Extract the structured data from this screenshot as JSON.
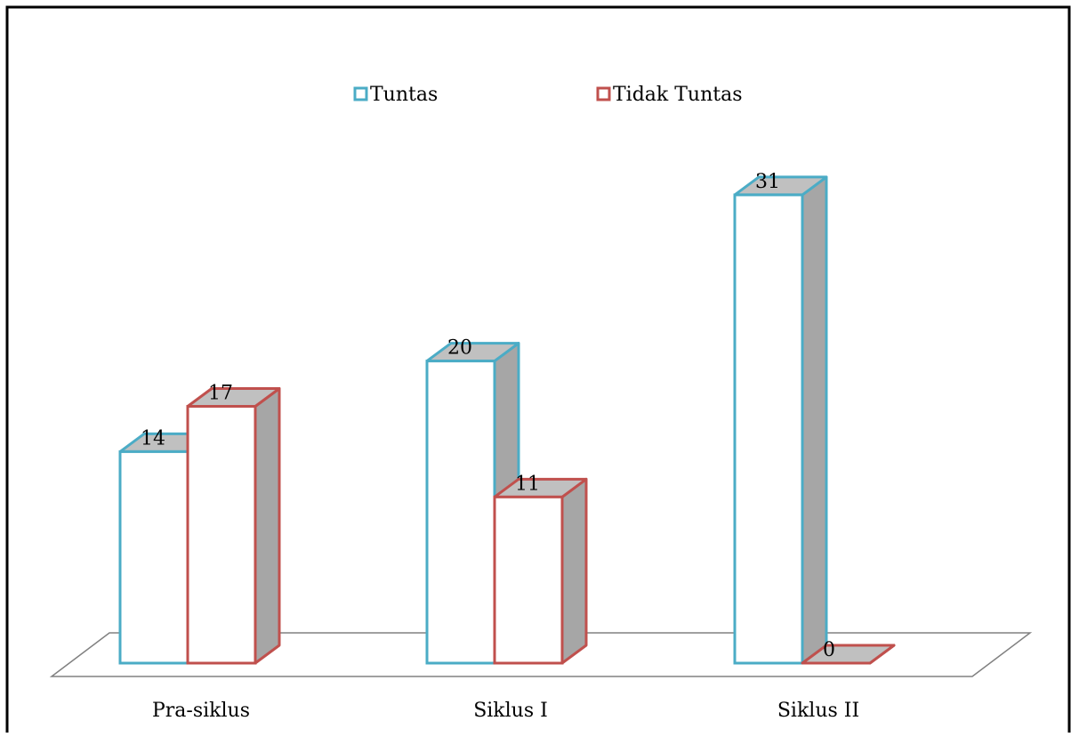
{
  "chart_data": {
    "type": "bar",
    "style": "3d-clustered",
    "categories": [
      "Pra-siklus",
      "Siklus I",
      "Siklus II"
    ],
    "series": [
      {
        "name": "Tuntas",
        "values": [
          14,
          20,
          31
        ],
        "color": "#4BACC6"
      },
      {
        "name": "Tidak Tuntas",
        "values": [
          17,
          11,
          0
        ],
        "color": "#C0504D"
      }
    ],
    "title": "",
    "xlabel": "",
    "ylabel": "",
    "ylim": [
      0,
      35
    ],
    "grid": false,
    "legend_position": "top"
  },
  "colors": {
    "face": "#ffffff",
    "side": "#a6a6a6",
    "top": "#c0c0c0",
    "floor": "#808080",
    "border": "#000000"
  }
}
